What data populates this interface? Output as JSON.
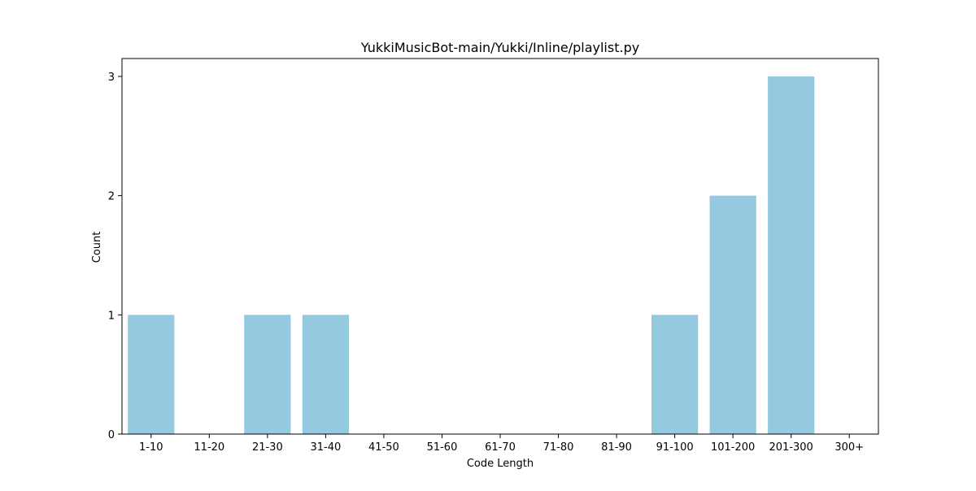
{
  "chart_data": {
    "type": "bar",
    "title": "YukkiMusicBot-main/Yukki/Inline/playlist.py",
    "xlabel": "Code Length",
    "ylabel": "Count",
    "categories": [
      "1-10",
      "11-20",
      "21-30",
      "31-40",
      "41-50",
      "51-60",
      "61-70",
      "71-80",
      "81-90",
      "91-100",
      "101-200",
      "201-300",
      "300+"
    ],
    "values": [
      1,
      0,
      1,
      1,
      0,
      0,
      0,
      0,
      0,
      1,
      2,
      3,
      0
    ],
    "ylim": [
      0,
      3.15
    ],
    "yticks": [
      0,
      1,
      2,
      3
    ],
    "grid": false,
    "bar_color": "#95c9df"
  }
}
